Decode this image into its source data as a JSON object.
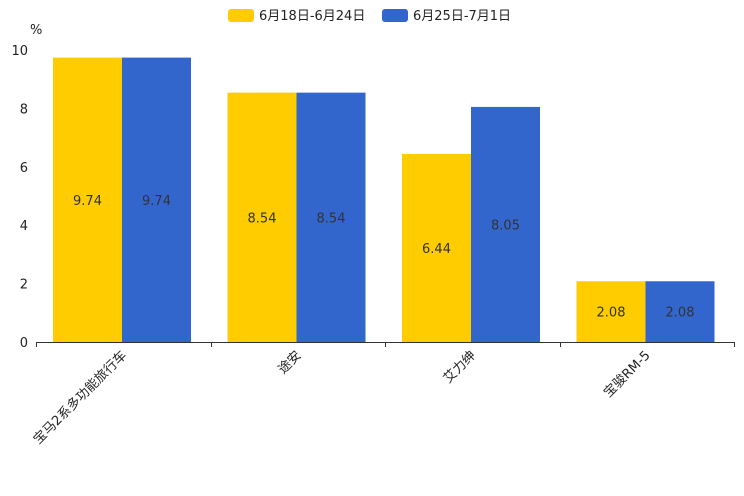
{
  "chart_data": {
    "type": "bar",
    "ylabel": "%",
    "ylim": [
      0,
      10
    ],
    "yticks": [
      "0",
      "2",
      "4",
      "6",
      "8",
      "10"
    ],
    "categories": [
      "宝马2系多功能旅行车",
      "途安",
      "艾力绅",
      "宝骏RM-5"
    ],
    "series": [
      {
        "name": "6月18日-6月24日",
        "color": "#FFCC00",
        "values": [
          9.74,
          8.54,
          6.44,
          2.08
        ],
        "labels": [
          "9.74",
          "8.54",
          "6.44",
          "2.08"
        ]
      },
      {
        "name": "6月25日-7月1日",
        "color": "#3366CC",
        "values": [
          9.74,
          8.54,
          8.05,
          2.08
        ],
        "labels": [
          "9.74",
          "8.54",
          "8.05",
          "2.08"
        ]
      }
    ],
    "legend_position": "top-center",
    "grid": false
  }
}
